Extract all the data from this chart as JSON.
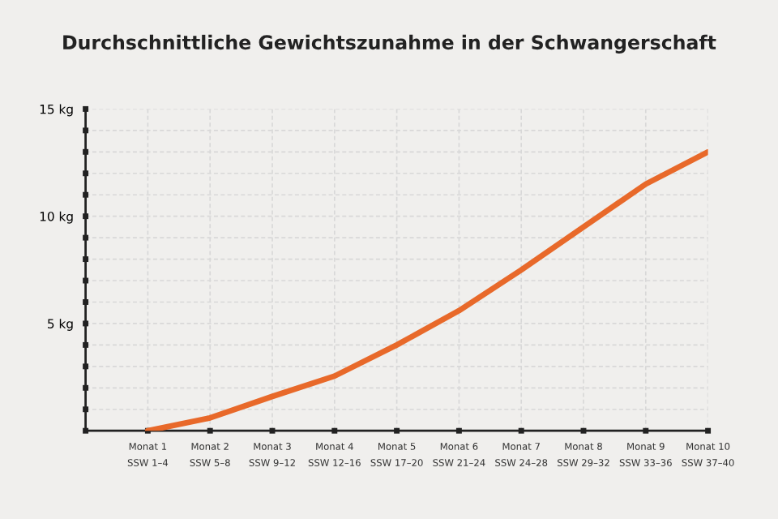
{
  "chart_data": {
    "type": "line",
    "title": "Durchschnittliche Gewichtszunahme in der Schwangerschaft",
    "categories": [
      "Monat 1\nSSW 1–4",
      "Monat 2\nSSW 5–8",
      "Monat 3\nSSW 9–12",
      "Monat 4\nSSW 12–16",
      "Monat 5\nSSW 17–20",
      "Monat 6\nSSW 21–24",
      "Monat 7\nSSW 24–28",
      "Monat 8\nSSW 29–32",
      "Monat 9\nSSW 33–36",
      "Monat 10\nSSW 37–40"
    ],
    "series": [
      {
        "color": "#e8692a",
        "values": [
          0,
          0.6,
          1.6,
          2.55,
          4.0,
          5.6,
          7.5,
          9.5,
          11.5,
          13
        ]
      }
    ],
    "ylim": [
      0,
      15
    ],
    "yticks": [
      {
        "value": 0,
        "label": null
      },
      {
        "value": 1,
        "label": null
      },
      {
        "value": 2,
        "label": null
      },
      {
        "value": 3,
        "label": null
      },
      {
        "value": 4,
        "label": null
      },
      {
        "value": 5,
        "label": "5 kg"
      },
      {
        "value": 6,
        "label": null
      },
      {
        "value": 7,
        "label": null
      },
      {
        "value": 8,
        "label": null
      },
      {
        "value": 9,
        "label": null
      },
      {
        "value": 10,
        "label": "10 kg"
      },
      {
        "value": 11,
        "label": null
      },
      {
        "value": 12,
        "label": null
      },
      {
        "value": 13,
        "label": null
      },
      {
        "value": 14,
        "label": null
      },
      {
        "value": 15,
        "label": "15 kg"
      }
    ],
    "grid": true,
    "marker": "none",
    "line_style": "solid",
    "legend": false
  }
}
